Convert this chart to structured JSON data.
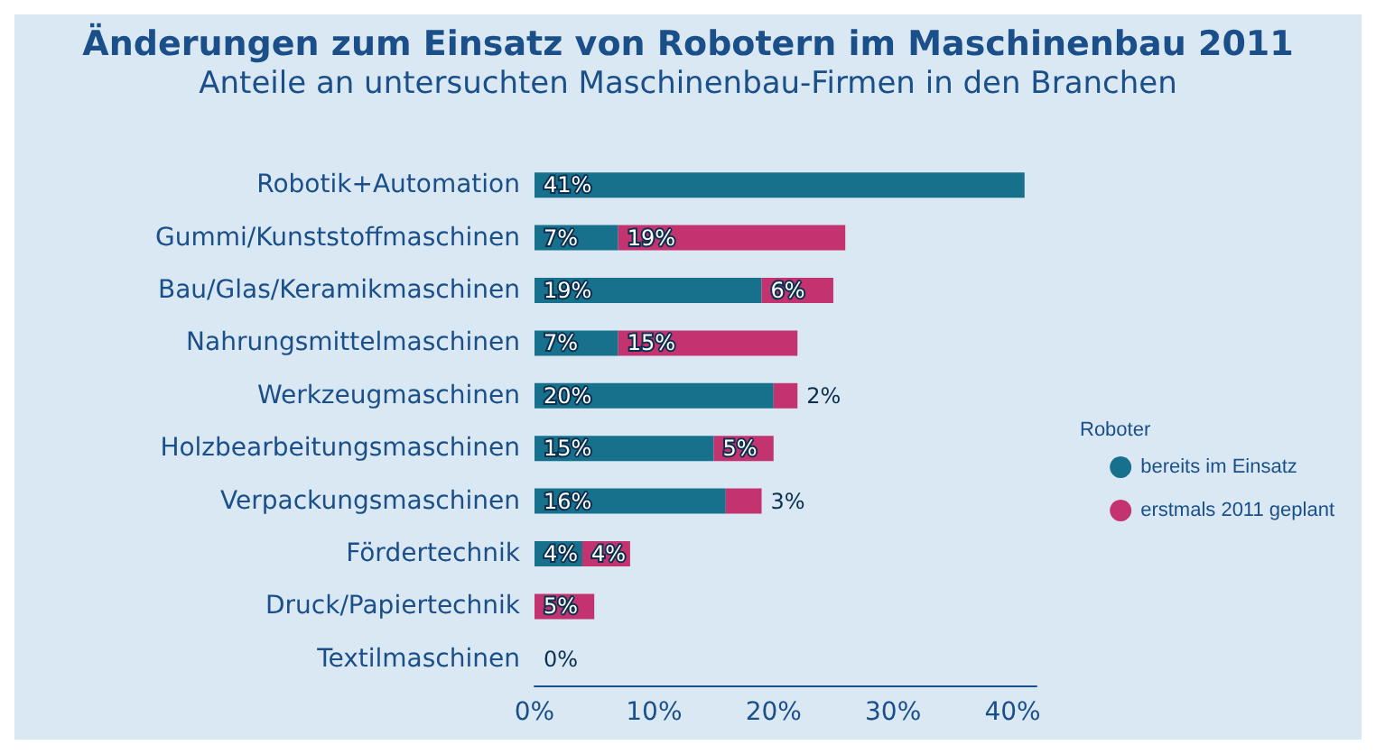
{
  "chart_data": {
    "type": "bar",
    "orientation": "horizontal",
    "stacked": true,
    "title": "Änderungen zum Einsatz von Robotern im Maschinenbau 2011",
    "subtitle": "Anteile an untersuchten Maschinenbau-Firmen in den Branchen",
    "categories": [
      "Robotik+Automation",
      "Gummi/Kunststoffmaschinen",
      "Bau/Glas/Keramikmaschinen",
      "Nahrungsmittelmaschinen",
      "Werkzeugmaschinen",
      "Holzbearbeitungsmaschinen",
      "Verpackungsmaschinen",
      "Fördertechnik",
      "Druck/Papiertechnik",
      "Textilmaschinen"
    ],
    "series": [
      {
        "name": "bereits im Einsatz",
        "color": "#17708c",
        "values": [
          41,
          7,
          19,
          7,
          20,
          15,
          16,
          4,
          0,
          0
        ],
        "value_labels": [
          "41%",
          "7%",
          "19%",
          "7%",
          "20%",
          "15%",
          "16%",
          "4%",
          null,
          "0%"
        ]
      },
      {
        "name": "erstmals 2011 geplant",
        "color": "#c2336f",
        "values": [
          0,
          19,
          6,
          15,
          2,
          5,
          3,
          4,
          5,
          0
        ],
        "value_labels": [
          null,
          "19%",
          "6%",
          "15%",
          "2%",
          "5%",
          "3%",
          "4%",
          "5%",
          null
        ]
      }
    ],
    "legend_title": "Roboter",
    "legend": "right",
    "grid": false,
    "xlim": [
      0,
      42
    ],
    "xticks": [
      {
        "value": 0,
        "label": "0%"
      },
      {
        "value": 10,
        "label": "10%"
      },
      {
        "value": 20,
        "label": "20%"
      },
      {
        "value": 30,
        "label": "30%"
      },
      {
        "value": 40,
        "label": "40%"
      }
    ]
  }
}
